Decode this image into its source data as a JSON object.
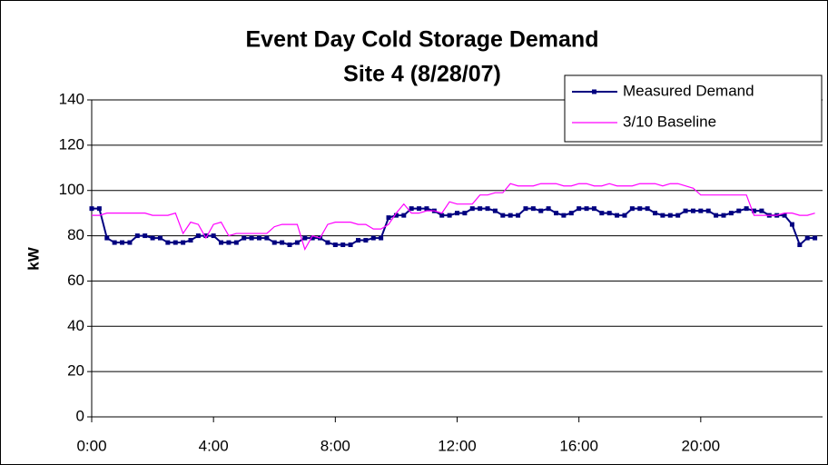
{
  "chart_data": {
    "type": "line",
    "title": "Event Day Cold Storage Demand",
    "subtitle": "Site 4 (8/28/07)",
    "y_label": "kW",
    "x": [
      0,
      0.25,
      0.5,
      0.75,
      1,
      1.25,
      1.5,
      1.75,
      2,
      2.25,
      2.5,
      2.75,
      3,
      3.25,
      3.5,
      3.75,
      4,
      4.25,
      4.5,
      4.75,
      5,
      5.25,
      5.5,
      5.75,
      6,
      6.25,
      6.5,
      6.75,
      7,
      7.25,
      7.5,
      7.75,
      8,
      8.25,
      8.5,
      8.75,
      9,
      9.25,
      9.5,
      9.75,
      10,
      10.25,
      10.5,
      10.75,
      11,
      11.25,
      11.5,
      11.75,
      12,
      12.25,
      12.5,
      12.75,
      13,
      13.25,
      13.5,
      13.75,
      14,
      14.25,
      14.5,
      14.75,
      15,
      15.25,
      15.5,
      15.75,
      16,
      16.25,
      16.5,
      16.75,
      17,
      17.25,
      17.5,
      17.75,
      18,
      18.25,
      18.5,
      18.75,
      19,
      19.25,
      19.5,
      19.75,
      20,
      20.25,
      20.5,
      20.75,
      21,
      21.25,
      21.5,
      21.75,
      22,
      22.25,
      22.5,
      22.75,
      23,
      23.25,
      23.5,
      23.75
    ],
    "series": [
      {
        "name": "Measured Demand",
        "color": "#000080",
        "marker": "square",
        "values": [
          92,
          92,
          79,
          77,
          77,
          77,
          80,
          80,
          79,
          79,
          77,
          77,
          77,
          78,
          80,
          80,
          80,
          77,
          77,
          77,
          79,
          79,
          79,
          79,
          77,
          77,
          76,
          77,
          79,
          79,
          79,
          77,
          76,
          76,
          76,
          78,
          78,
          79,
          79,
          88,
          89,
          89,
          92,
          92,
          92,
          91,
          89,
          89,
          90,
          90,
          92,
          92,
          92,
          91,
          89,
          89,
          89,
          92,
          92,
          91,
          92,
          90,
          89,
          90,
          92,
          92,
          92,
          90,
          90,
          89,
          89,
          92,
          92,
          92,
          90,
          89,
          89,
          89,
          91,
          91,
          91,
          91,
          89,
          89,
          90,
          91,
          92,
          91,
          91,
          89,
          89,
          89,
          85,
          76,
          79,
          79
        ]
      },
      {
        "name": "3/10 Baseline",
        "color": "#ff00ff",
        "values": [
          89,
          89,
          90,
          90,
          90,
          90,
          90,
          90,
          89,
          89,
          89,
          90,
          81,
          86,
          85,
          79,
          85,
          86,
          80,
          81,
          81,
          81,
          81,
          81,
          84,
          85,
          85,
          85,
          74,
          80,
          79,
          85,
          86,
          86,
          86,
          85,
          85,
          83,
          83,
          85,
          90,
          94,
          90,
          90,
          91,
          91,
          90,
          95,
          94,
          94,
          94,
          98,
          98,
          99,
          99,
          103,
          102,
          102,
          102,
          103,
          103,
          103,
          102,
          102,
          103,
          103,
          102,
          102,
          103,
          102,
          102,
          102,
          103,
          103,
          103,
          102,
          103,
          103,
          102,
          101,
          98,
          98,
          98,
          98,
          98,
          98,
          98,
          89,
          89,
          89,
          89,
          90,
          90,
          89,
          89,
          90
        ]
      }
    ],
    "xlim": [
      0,
      24
    ],
    "xticks": [
      {
        "value": 0,
        "label": "0:00"
      },
      {
        "value": 4,
        "label": "4:00"
      },
      {
        "value": 8,
        "label": "8:00"
      },
      {
        "value": 12,
        "label": "12:00"
      },
      {
        "value": 16,
        "label": "16:00"
      },
      {
        "value": 20,
        "label": "20:00"
      }
    ],
    "ylim": [
      0,
      140
    ],
    "yticks": [
      0,
      20,
      40,
      60,
      80,
      100,
      120,
      140
    ],
    "grid": true,
    "legend": "top-right"
  }
}
